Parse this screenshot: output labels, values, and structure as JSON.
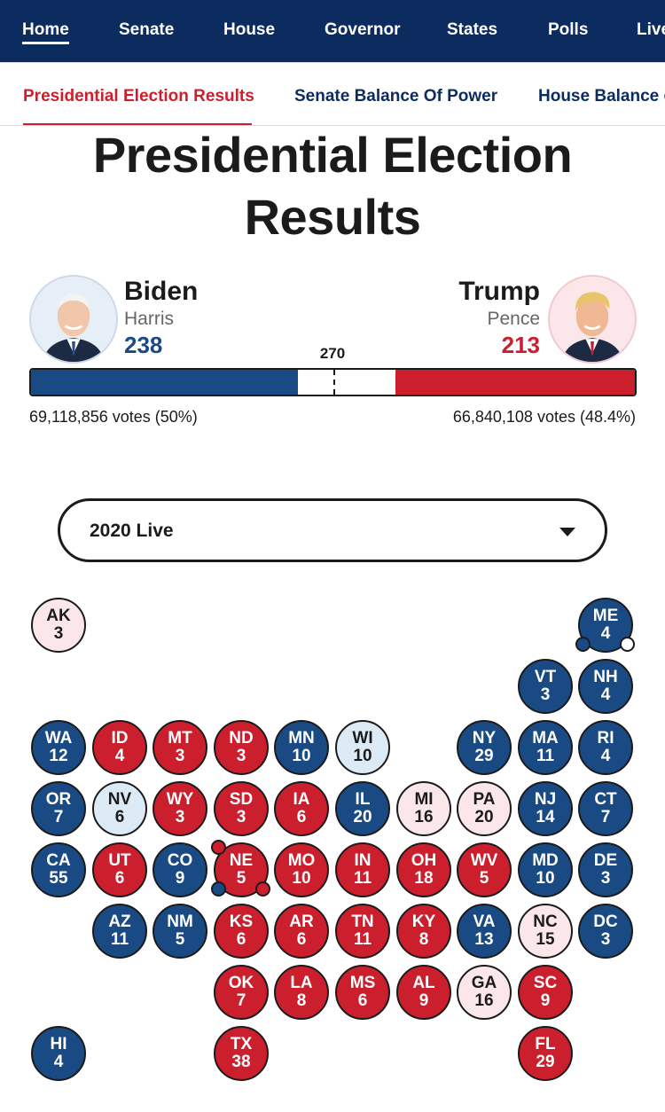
{
  "nav": {
    "items": [
      {
        "label": "Home",
        "active": true
      },
      {
        "label": "Senate"
      },
      {
        "label": "House"
      },
      {
        "label": "Governor"
      },
      {
        "label": "States"
      },
      {
        "label": "Polls"
      },
      {
        "label": "Live"
      }
    ]
  },
  "subnav": {
    "items": [
      {
        "label": "Presidential Election Results",
        "active": true
      },
      {
        "label": "Senate Balance Of Power"
      },
      {
        "label": "House Balance of Power"
      }
    ]
  },
  "page": {
    "title_line1": "Presidential Election",
    "title_line2": "Results"
  },
  "candidates": {
    "dem": {
      "name": "Biden",
      "running_mate": "Harris",
      "electoral_votes": "238",
      "popular_votes": "69,118,856 votes (50%)",
      "color": "#1a4a84"
    },
    "rep": {
      "name": "Trump",
      "running_mate": "Pence",
      "electoral_votes": "213",
      "popular_votes": "66,840,108 votes (48.4%)",
      "color": "#cc1f2e"
    }
  },
  "bar": {
    "threshold_label": "270",
    "total": 538,
    "dem_value": 238,
    "rep_value": 213
  },
  "selector": {
    "value": "2020 Live"
  },
  "colors": {
    "dem": "#1a4a84",
    "rep": "#cc1f2e",
    "lean_dem": "#dceaf6",
    "lean_rep": "#fbe7ea",
    "nav_bg": "#0c2b5e",
    "accent": "#cc1f2e"
  },
  "states": [
    {
      "abbr": "AK",
      "ev": "3",
      "status": "LR",
      "col": 0,
      "row": 0
    },
    {
      "abbr": "ME",
      "ev": "4",
      "status": "D",
      "col": 9,
      "row": 0
    },
    {
      "abbr": "VT",
      "ev": "3",
      "status": "D",
      "col": 8,
      "row": 1
    },
    {
      "abbr": "NH",
      "ev": "4",
      "status": "D",
      "col": 9,
      "row": 1
    },
    {
      "abbr": "WA",
      "ev": "12",
      "status": "D",
      "col": 0,
      "row": 2
    },
    {
      "abbr": "ID",
      "ev": "4",
      "status": "R",
      "col": 1,
      "row": 2
    },
    {
      "abbr": "MT",
      "ev": "3",
      "status": "R",
      "col": 2,
      "row": 2
    },
    {
      "abbr": "ND",
      "ev": "3",
      "status": "R",
      "col": 3,
      "row": 2
    },
    {
      "abbr": "MN",
      "ev": "10",
      "status": "D",
      "col": 4,
      "row": 2
    },
    {
      "abbr": "WI",
      "ev": "10",
      "status": "LD",
      "col": 5,
      "row": 2
    },
    {
      "abbr": "NY",
      "ev": "29",
      "status": "D",
      "col": 7,
      "row": 2
    },
    {
      "abbr": "MA",
      "ev": "11",
      "status": "D",
      "col": 8,
      "row": 2
    },
    {
      "abbr": "RI",
      "ev": "4",
      "status": "D",
      "col": 9,
      "row": 2
    },
    {
      "abbr": "OR",
      "ev": "7",
      "status": "D",
      "col": 0,
      "row": 3
    },
    {
      "abbr": "NV",
      "ev": "6",
      "status": "LD",
      "col": 1,
      "row": 3
    },
    {
      "abbr": "WY",
      "ev": "3",
      "status": "R",
      "col": 2,
      "row": 3
    },
    {
      "abbr": "SD",
      "ev": "3",
      "status": "R",
      "col": 3,
      "row": 3
    },
    {
      "abbr": "IA",
      "ev": "6",
      "status": "R",
      "col": 4,
      "row": 3
    },
    {
      "abbr": "IL",
      "ev": "20",
      "status": "D",
      "col": 5,
      "row": 3
    },
    {
      "abbr": "MI",
      "ev": "16",
      "status": "LR",
      "col": 6,
      "row": 3
    },
    {
      "abbr": "PA",
      "ev": "20",
      "status": "LR",
      "col": 7,
      "row": 3
    },
    {
      "abbr": "NJ",
      "ev": "14",
      "status": "D",
      "col": 8,
      "row": 3
    },
    {
      "abbr": "CT",
      "ev": "7",
      "status": "D",
      "col": 9,
      "row": 3
    },
    {
      "abbr": "CA",
      "ev": "55",
      "status": "D",
      "col": 0,
      "row": 4
    },
    {
      "abbr": "UT",
      "ev": "6",
      "status": "R",
      "col": 1,
      "row": 4
    },
    {
      "abbr": "CO",
      "ev": "9",
      "status": "D",
      "col": 2,
      "row": 4
    },
    {
      "abbr": "NE",
      "ev": "5",
      "status": "R",
      "col": 3,
      "row": 4
    },
    {
      "abbr": "MO",
      "ev": "10",
      "status": "R",
      "col": 4,
      "row": 4
    },
    {
      "abbr": "IN",
      "ev": "11",
      "status": "R",
      "col": 5,
      "row": 4
    },
    {
      "abbr": "OH",
      "ev": "18",
      "status": "R",
      "col": 6,
      "row": 4
    },
    {
      "abbr": "WV",
      "ev": "5",
      "status": "R",
      "col": 7,
      "row": 4
    },
    {
      "abbr": "MD",
      "ev": "10",
      "status": "D",
      "col": 8,
      "row": 4
    },
    {
      "abbr": "DE",
      "ev": "3",
      "status": "D",
      "col": 9,
      "row": 4
    },
    {
      "abbr": "AZ",
      "ev": "11",
      "status": "D",
      "col": 1,
      "row": 5
    },
    {
      "abbr": "NM",
      "ev": "5",
      "status": "D",
      "col": 2,
      "row": 5
    },
    {
      "abbr": "KS",
      "ev": "6",
      "status": "R",
      "col": 3,
      "row": 5
    },
    {
      "abbr": "AR",
      "ev": "6",
      "status": "R",
      "col": 4,
      "row": 5
    },
    {
      "abbr": "TN",
      "ev": "11",
      "status": "R",
      "col": 5,
      "row": 5
    },
    {
      "abbr": "KY",
      "ev": "8",
      "status": "R",
      "col": 6,
      "row": 5
    },
    {
      "abbr": "VA",
      "ev": "13",
      "status": "D",
      "col": 7,
      "row": 5
    },
    {
      "abbr": "NC",
      "ev": "15",
      "status": "LR",
      "col": 8,
      "row": 5
    },
    {
      "abbr": "DC",
      "ev": "3",
      "status": "D",
      "col": 9,
      "row": 5
    },
    {
      "abbr": "OK",
      "ev": "7",
      "status": "R",
      "col": 3,
      "row": 6
    },
    {
      "abbr": "LA",
      "ev": "8",
      "status": "R",
      "col": 4,
      "row": 6
    },
    {
      "abbr": "MS",
      "ev": "6",
      "status": "R",
      "col": 5,
      "row": 6
    },
    {
      "abbr": "AL",
      "ev": "9",
      "status": "R",
      "col": 6,
      "row": 6
    },
    {
      "abbr": "GA",
      "ev": "16",
      "status": "LR",
      "col": 7,
      "row": 6
    },
    {
      "abbr": "SC",
      "ev": "9",
      "status": "R",
      "col": 8,
      "row": 6
    },
    {
      "abbr": "HI",
      "ev": "4",
      "status": "D",
      "col": 0,
      "row": 7
    },
    {
      "abbr": "TX",
      "ev": "38",
      "status": "R",
      "col": 3,
      "row": 7
    },
    {
      "abbr": "FL",
      "ev": "29",
      "status": "R",
      "col": 8,
      "row": 7
    }
  ],
  "district_dots": [
    {
      "state": "ME",
      "slot": "bottom-left",
      "status": "D"
    },
    {
      "state": "ME",
      "slot": "bottom-right",
      "status": "W"
    },
    {
      "state": "NE",
      "slot": "top-left",
      "status": "R"
    },
    {
      "state": "NE",
      "slot": "bottom-left",
      "status": "D"
    },
    {
      "state": "NE",
      "slot": "bottom-right",
      "status": "R"
    }
  ]
}
